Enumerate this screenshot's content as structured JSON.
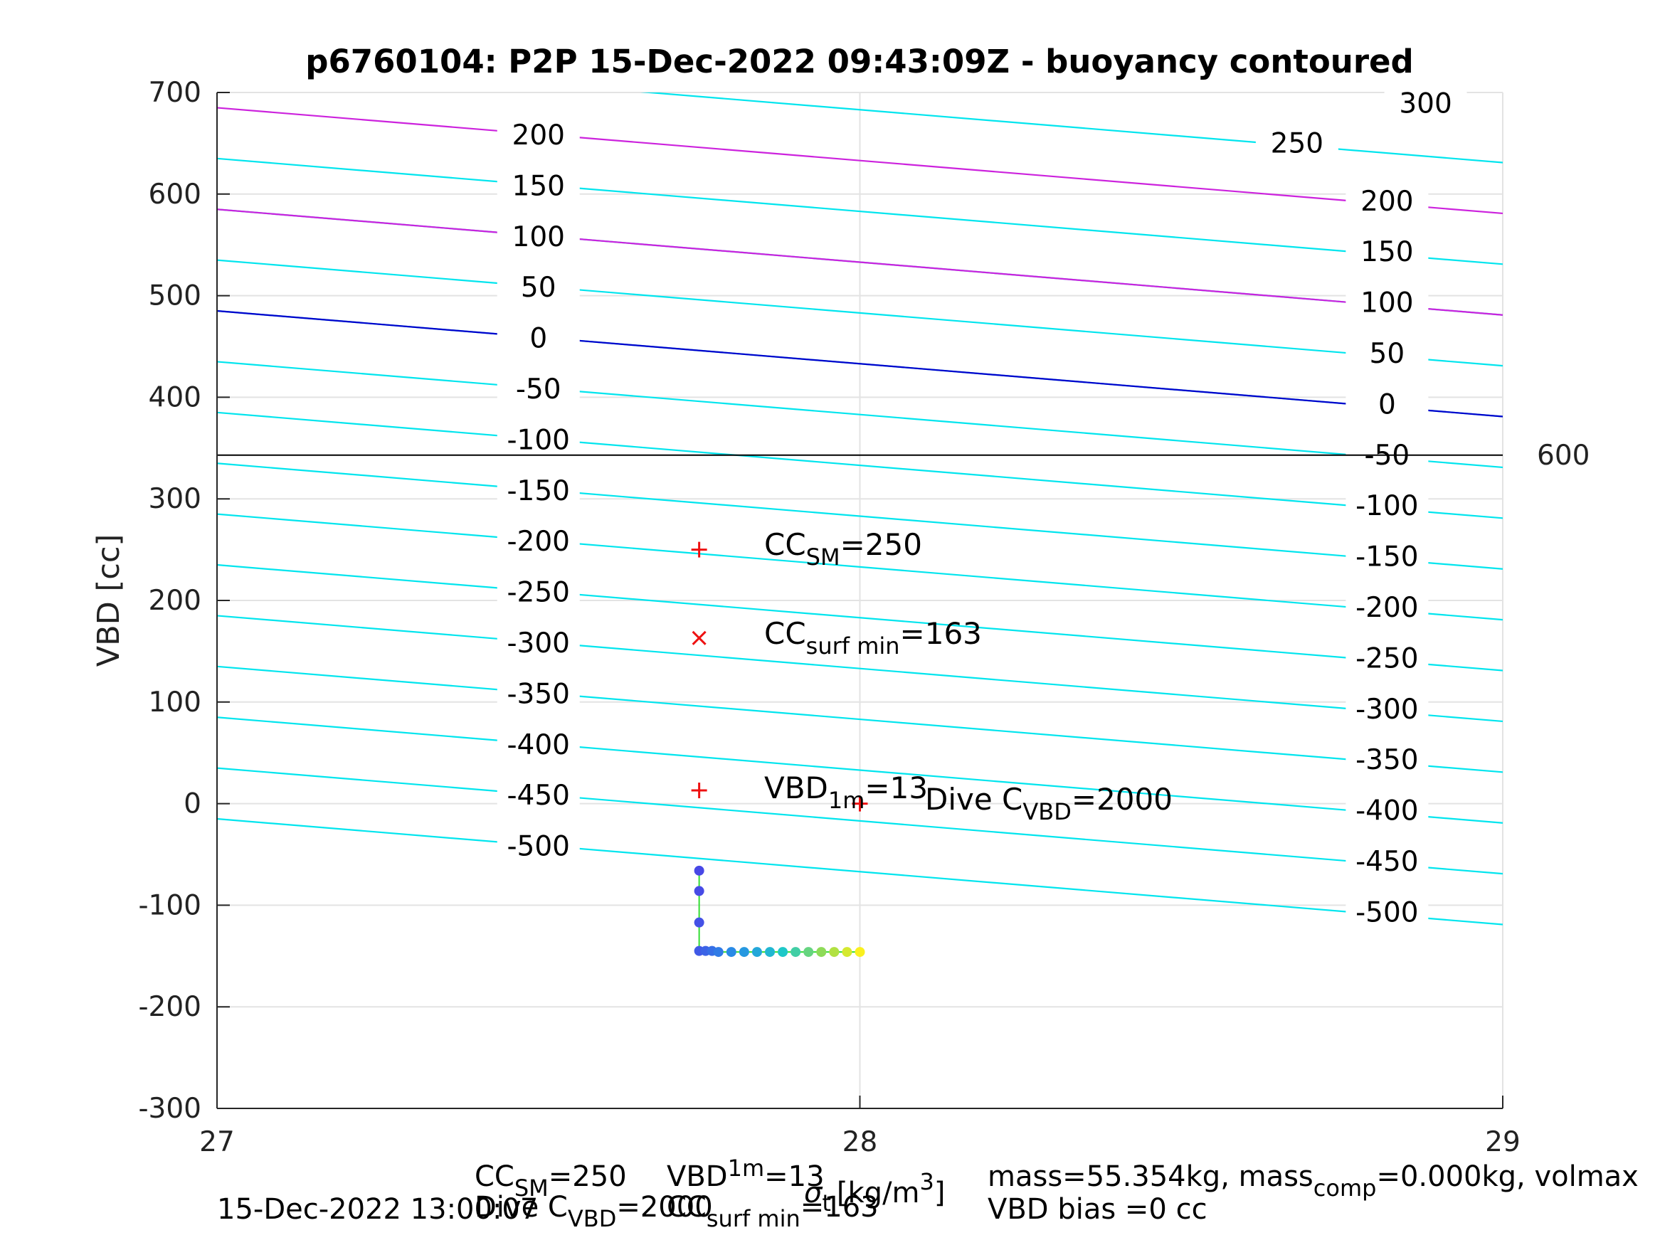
{
  "chart_data": {
    "type": "scatter",
    "title": "p6760104: P2P 15-Dec-2022 09:43:09Z - buoyancy contoured",
    "ylabel": "VBD [cc]",
    "xlim": [
      27,
      29
    ],
    "ylim": [
      -300,
      700
    ],
    "x_ticks": [
      "27",
      "28",
      "29"
    ],
    "y_ticks": [
      "-300",
      "-200",
      "-100",
      "0",
      "100",
      "200",
      "300",
      "400",
      "500",
      "600",
      "700"
    ],
    "grid": true,
    "right_edge_label": "600",
    "reference_line_y": 343,
    "colors": {
      "cyan_contour": "#00e5ee",
      "magenta_contour": "#cc22dd",
      "zero_contour": "#0000cc",
      "marker": "#ee1111",
      "path_line": "#33dd33"
    },
    "contours": {
      "slope_per_unit_x": -52,
      "cyan_offsets": [
        735,
        635,
        585,
        535,
        485,
        435,
        385,
        335,
        285,
        235,
        185,
        135,
        85,
        35,
        -15
      ],
      "magenta_offsets": [
        685,
        585
      ],
      "zero_offset": 485,
      "labels_left": [
        {
          "text": "200",
          "x": 27.5,
          "y": 658
        },
        {
          "text": "150",
          "x": 27.5,
          "y": 608
        },
        {
          "text": "100",
          "x": 27.5,
          "y": 558
        },
        {
          "text": "50",
          "x": 27.5,
          "y": 508
        },
        {
          "text": "0",
          "x": 27.5,
          "y": 458
        },
        {
          "text": "-50",
          "x": 27.5,
          "y": 408
        },
        {
          "text": "-100",
          "x": 27.5,
          "y": 358
        },
        {
          "text": "-150",
          "x": 27.5,
          "y": 308
        },
        {
          "text": "-200",
          "x": 27.5,
          "y": 258
        },
        {
          "text": "-250",
          "x": 27.5,
          "y": 208
        },
        {
          "text": "-300",
          "x": 27.5,
          "y": 158
        },
        {
          "text": "-350",
          "x": 27.5,
          "y": 108
        },
        {
          "text": "-400",
          "x": 27.5,
          "y": 58
        },
        {
          "text": "-450",
          "x": 27.5,
          "y": 8
        },
        {
          "text": "-500",
          "x": 27.5,
          "y": -42
        }
      ],
      "labels_right": [
        {
          "text": "300",
          "x": 28.88,
          "y": 689
        },
        {
          "text": "250",
          "x": 28.68,
          "y": 650
        },
        {
          "text": "200",
          "x": 28.82,
          "y": 593
        },
        {
          "text": "150",
          "x": 28.82,
          "y": 543
        },
        {
          "text": "100",
          "x": 28.82,
          "y": 493
        },
        {
          "text": "50",
          "x": 28.82,
          "y": 443
        },
        {
          "text": "0",
          "x": 28.82,
          "y": 393
        },
        {
          "text": "-50",
          "x": 28.82,
          "y": 343
        },
        {
          "text": "-100",
          "x": 28.82,
          "y": 293
        },
        {
          "text": "-150",
          "x": 28.82,
          "y": 243
        },
        {
          "text": "-200",
          "x": 28.82,
          "y": 193
        },
        {
          "text": "-250",
          "x": 28.82,
          "y": 143
        },
        {
          "text": "-300",
          "x": 28.82,
          "y": 93
        },
        {
          "text": "-350",
          "x": 28.82,
          "y": 43
        },
        {
          "text": "-400",
          "x": 28.82,
          "y": -7
        },
        {
          "text": "-450",
          "x": 28.82,
          "y": -57
        },
        {
          "text": "-500",
          "x": 28.82,
          "y": -107
        }
      ]
    },
    "markers": [
      {
        "symbol": "+",
        "x": 27.75,
        "y": 250
      },
      {
        "symbol": "x",
        "x": 27.75,
        "y": 163
      },
      {
        "symbol": "+",
        "x": 27.75,
        "y": 13
      },
      {
        "symbol": "+",
        "x": 28.0,
        "y": 0
      }
    ],
    "annotations": [
      {
        "base": "CC",
        "sub": "SM",
        "rest": "=250"
      },
      {
        "base": "CC",
        "sub": "surf min",
        "rest": "=163"
      },
      {
        "base": "VBD",
        "sub": "1m",
        "rest": "=13"
      },
      {
        "base": "Dive C",
        "sub": "VBD",
        "rest": "=2000"
      }
    ],
    "dive_points": {
      "x": [
        27.75,
        27.75,
        27.75,
        27.75,
        27.76,
        27.77,
        27.78,
        27.8,
        27.82,
        27.84,
        27.86,
        27.88,
        27.9,
        27.92,
        27.94,
        27.96,
        27.98,
        28.0
      ],
      "y": [
        -66,
        -86,
        -117,
        -145,
        -145,
        -145,
        -146,
        -146,
        -146,
        -146,
        -146,
        -146,
        -146,
        -146,
        -146,
        -146,
        -146,
        -146
      ]
    },
    "footer": {
      "line1_left": "CC",
      "line1_left_sub": "SM",
      "line1_left_rest": "=250",
      "line1_mid": "VBD",
      "line1_mid_sub": "1m",
      "line1_mid_rest": "=13",
      "xlabel_sigma": "σ",
      "xlabel_sub": "t",
      "xlabel_units": "[kg/m",
      "xlabel_units_sup": "3",
      "xlabel_units_end": "]",
      "line1_right": "mass=55.354kg, mass",
      "line1_right_sub": "comp",
      "line1_right_rest": "=0.000kg, volmax",
      "line2_date": "15-Dec-2022 13:00:07",
      "line2_dive": "Dive C",
      "line2_dive_sub": "VBD",
      "line2_dive_rest": "=2000",
      "line2_cc": "CC",
      "line2_cc_sub": "surf min",
      "line2_cc_rest": "=163",
      "line2_right": "VBD bias =0 cc"
    }
  }
}
